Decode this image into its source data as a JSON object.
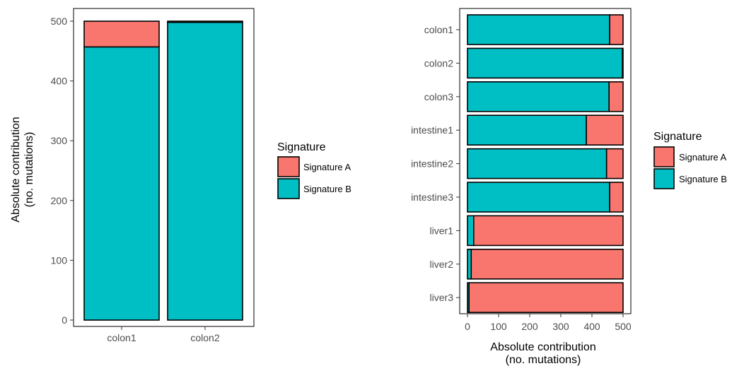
{
  "chart_data": [
    {
      "type": "bar",
      "orientation": "vertical",
      "stacked": true,
      "categories": [
        "colon1",
        "colon2"
      ],
      "series": [
        {
          "name": "Signature A",
          "values": [
            43,
            2
          ]
        },
        {
          "name": "Signature B",
          "values": [
            457,
            498
          ]
        }
      ],
      "ylabel": [
        "Absolute contribution",
        "(no. mutations)"
      ],
      "xlabel": "",
      "ylim": [
        0,
        500
      ],
      "yticks": [
        "0",
        "100",
        "200",
        "300",
        "400",
        "500"
      ],
      "grid": false,
      "legend": {
        "title": "Signature",
        "placement": "right"
      }
    },
    {
      "type": "bar",
      "orientation": "horizontal",
      "stacked": true,
      "categories": [
        "colon1",
        "colon2",
        "colon3",
        "intestine1",
        "intestine2",
        "intestine3",
        "liver1",
        "liver2",
        "liver3"
      ],
      "series": [
        {
          "name": "Signature A",
          "values": [
            43,
            2,
            45,
            118,
            53,
            43,
            480,
            488,
            495
          ]
        },
        {
          "name": "Signature B",
          "values": [
            457,
            498,
            455,
            382,
            447,
            457,
            20,
            12,
            5
          ]
        }
      ],
      "xlabel": [
        "Absolute contribution",
        "(no. mutations)"
      ],
      "ylabel": "",
      "xlim": [
        0,
        500
      ],
      "xticks": [
        "0",
        "100",
        "200",
        "300",
        "400",
        "500"
      ],
      "grid": false,
      "legend": {
        "title": "Signature",
        "placement": "right"
      }
    }
  ],
  "colors": {
    "Signature A": "#F8766D",
    "Signature B": "#00BFC4"
  }
}
